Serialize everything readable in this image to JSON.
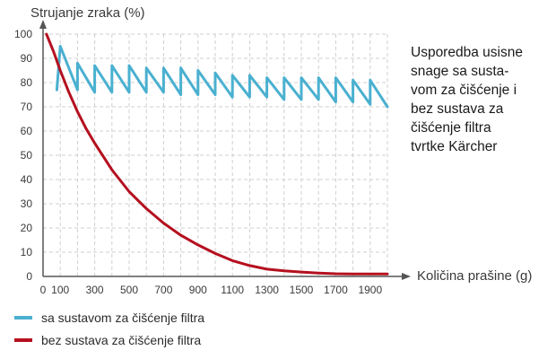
{
  "chart_data": {
    "type": "line",
    "title": "Usporedba usisne snage sa susta-\nvom za čišćenje i\nbez sustava za\nčišćenje filtra\ntvrtke Kärcher",
    "ylabel": "Strujanje zraka (%)",
    "xlabel": "Količina prašine (g)",
    "xlim": [
      0,
      2000
    ],
    "ylim": [
      0,
      100
    ],
    "x_ticks": [
      "0",
      "100",
      "300",
      "500",
      "700",
      "900",
      "1100",
      "1300",
      "1500",
      "1700",
      "1900"
    ],
    "x_tick_values": [
      0,
      100,
      300,
      500,
      700,
      900,
      1100,
      1300,
      1500,
      1700,
      1900
    ],
    "y_ticks": [
      "0",
      "10",
      "20",
      "30",
      "40",
      "50",
      "60",
      "70",
      "80",
      "90",
      "100"
    ],
    "y_tick_values": [
      0,
      10,
      20,
      30,
      40,
      50,
      60,
      70,
      80,
      90,
      100
    ],
    "grid": true,
    "legend_position": "bottom-left",
    "series": [
      {
        "name": "sa sustavom za čišćenje filtra",
        "color": "#4ab0d0",
        "x": [
          80,
          100,
          200,
          200,
          300,
          300,
          400,
          400,
          500,
          500,
          600,
          600,
          700,
          700,
          800,
          800,
          900,
          900,
          1000,
          1000,
          1100,
          1100,
          1200,
          1200,
          1300,
          1300,
          1400,
          1400,
          1500,
          1500,
          1600,
          1600,
          1700,
          1700,
          1800,
          1800,
          1900,
          1900,
          2000
        ],
        "y": [
          77,
          95,
          77,
          88,
          76,
          87,
          76,
          87,
          76,
          87,
          76,
          86,
          76,
          86,
          75,
          86,
          75,
          85,
          75,
          84,
          74,
          83,
          74,
          83,
          74,
          82,
          73,
          82,
          73,
          82,
          73,
          82,
          72,
          82,
          72,
          81,
          71,
          81,
          70
        ]
      },
      {
        "name": "bez sustava za čišćenje filtra",
        "color": "#b5101f",
        "x": [
          20,
          60,
          100,
          150,
          200,
          250,
          300,
          400,
          500,
          600,
          700,
          800,
          900,
          1000,
          1100,
          1200,
          1300,
          1400,
          1500,
          1600,
          1700,
          1800,
          1900,
          2000
        ],
        "y": [
          100,
          93,
          85,
          76,
          68,
          61,
          55,
          44,
          35,
          28,
          22,
          17,
          13,
          9.5,
          6.5,
          4.5,
          3,
          2.3,
          1.8,
          1.4,
          1.1,
          1.0,
          1.0,
          1.0
        ]
      }
    ]
  }
}
